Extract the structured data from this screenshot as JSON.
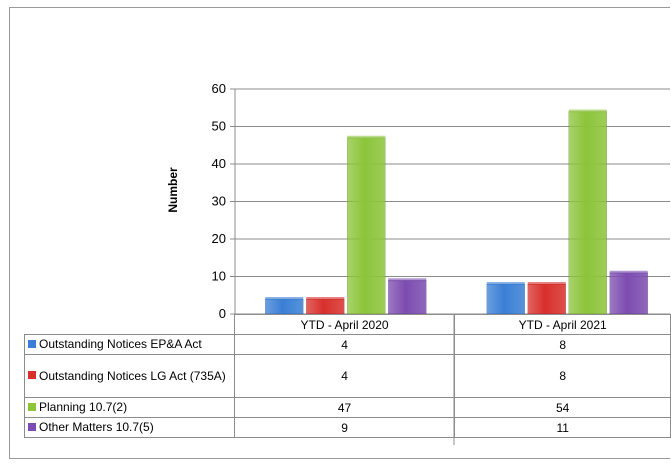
{
  "chart_data": {
    "type": "bar",
    "categories": [
      "YTD - April 2020",
      "YTD - April 2021"
    ],
    "series": [
      {
        "name": "Outstanding Notices EP&A Act",
        "values": [
          4,
          8
        ],
        "color": "#3a7fd5"
      },
      {
        "name": "Outstanding Notices LG Act (735A)",
        "values": [
          4,
          8
        ],
        "color": "#d8302c"
      },
      {
        "name": "Planning 10.7(2)",
        "values": [
          47,
          54
        ],
        "color": "#8cc43a"
      },
      {
        "name": "Other Matters 10.7(5)",
        "values": [
          9,
          11
        ],
        "color": "#7c4cb0"
      }
    ],
    "ylabel": "Number",
    "ylim": [
      0,
      60
    ],
    "yticks": [
      "0",
      "10",
      "20",
      "30",
      "40",
      "50",
      "60"
    ],
    "grid": true,
    "legend": "data table below chart",
    "table": {
      "rows": [
        {
          "label": "Outstanding Notices EP&A Act",
          "values": [
            "4",
            "8"
          ]
        },
        {
          "label": "Outstanding Notices LG Act (735A)",
          "values": [
            "4",
            "8"
          ]
        },
        {
          "label": "Planning 10.7(2)",
          "values": [
            "47",
            "54"
          ]
        },
        {
          "label": "Other Matters 10.7(5)",
          "values": [
            "9",
            "11"
          ]
        }
      ]
    }
  }
}
